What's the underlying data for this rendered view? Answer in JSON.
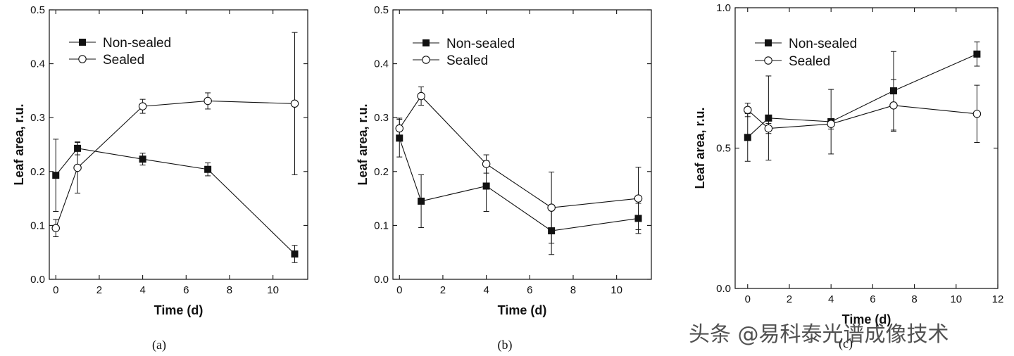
{
  "chart_data": [
    {
      "type": "line",
      "panel_label": "(a)",
      "xlabel": "Time (d)",
      "ylabel": "Leaf area, r.u.",
      "xlim": [
        -0.3,
        11.6
      ],
      "ylim": [
        0,
        0.5
      ],
      "xticks": [
        0,
        2,
        4,
        6,
        8,
        10
      ],
      "yticks": [
        0.0,
        0.1,
        0.2,
        0.3,
        0.4,
        0.5
      ],
      "xtick_labels": [
        "0",
        "2",
        "4",
        "6",
        "8",
        "10"
      ],
      "ytick_labels": [
        "0.0",
        "0.1",
        "0.2",
        "0.3",
        "0.4",
        "0.5"
      ],
      "legend_position": "upper-left",
      "series": [
        {
          "name": "Non-sealed",
          "marker": "filled-square",
          "x": [
            0,
            1,
            4,
            7,
            11
          ],
          "y": [
            0.193,
            0.243,
            0.223,
            0.204,
            0.047
          ],
          "err": [
            0.067,
            0.012,
            0.011,
            0.012,
            0.016
          ]
        },
        {
          "name": "Sealed",
          "marker": "open-circle",
          "x": [
            0,
            1,
            4,
            7,
            11
          ],
          "y": [
            0.095,
            0.207,
            0.321,
            0.331,
            0.326
          ],
          "err": [
            0.016,
            0.047,
            0.013,
            0.015,
            0.132
          ]
        }
      ]
    },
    {
      "type": "line",
      "panel_label": "(b)",
      "xlabel": "Time (d)",
      "ylabel": "Leaf area, r.u.",
      "xlim": [
        -0.3,
        11.6
      ],
      "ylim": [
        0,
        0.5
      ],
      "xticks": [
        0,
        2,
        4,
        6,
        8,
        10
      ],
      "yticks": [
        0.0,
        0.1,
        0.2,
        0.3,
        0.4,
        0.5
      ],
      "xtick_labels": [
        "0",
        "2",
        "4",
        "6",
        "8",
        "10"
      ],
      "ytick_labels": [
        "0.0",
        "0.1",
        "0.2",
        "0.3",
        "0.4",
        "0.5"
      ],
      "legend_position": "upper-left",
      "series": [
        {
          "name": "Non-sealed",
          "marker": "filled-square",
          "x": [
            0,
            1,
            4,
            7,
            11
          ],
          "y": [
            0.262,
            0.145,
            0.173,
            0.09,
            0.113
          ],
          "err": [
            0.035,
            0.049,
            0.047,
            0.044,
            0.028
          ]
        },
        {
          "name": "Sealed",
          "marker": "open-circle",
          "x": [
            0,
            1,
            4,
            7,
            11
          ],
          "y": [
            0.28,
            0.34,
            0.214,
            0.133,
            0.15
          ],
          "err": [
            0.019,
            0.017,
            0.017,
            0.066,
            0.058
          ]
        }
      ]
    },
    {
      "type": "line",
      "panel_label": "(c)",
      "xlabel": "Time (d)",
      "ylabel": "Leaf area, r.u.",
      "xlim": [
        -0.6,
        12
      ],
      "ylim": [
        0,
        1.0
      ],
      "xticks": [
        0,
        2,
        4,
        6,
        8,
        10,
        12
      ],
      "yticks": [
        0.0,
        0.5,
        1.0
      ],
      "xtick_labels": [
        "0",
        "2",
        "4",
        "6",
        "8",
        "10",
        "12"
      ],
      "ytick_labels": [
        "0.0",
        "0.5",
        "1.0"
      ],
      "legend_position": "upper-left",
      "series": [
        {
          "name": "Non-sealed",
          "marker": "filled-square",
          "x": [
            0,
            1,
            4,
            7,
            11
          ],
          "y": [
            0.538,
            0.607,
            0.594,
            0.704,
            0.835
          ],
          "err": [
            0.085,
            0.15,
            0.115,
            0.14,
            0.043
          ]
        },
        {
          "name": "Sealed",
          "marker": "open-circle",
          "x": [
            0,
            1,
            4,
            7,
            11
          ],
          "y": [
            0.636,
            0.57,
            0.586,
            0.652,
            0.622
          ],
          "err": [
            0.024,
            0.018,
            0.018,
            0.092,
            0.102
          ]
        }
      ]
    }
  ],
  "watermark": "头条 @易科泰光谱成像技术"
}
